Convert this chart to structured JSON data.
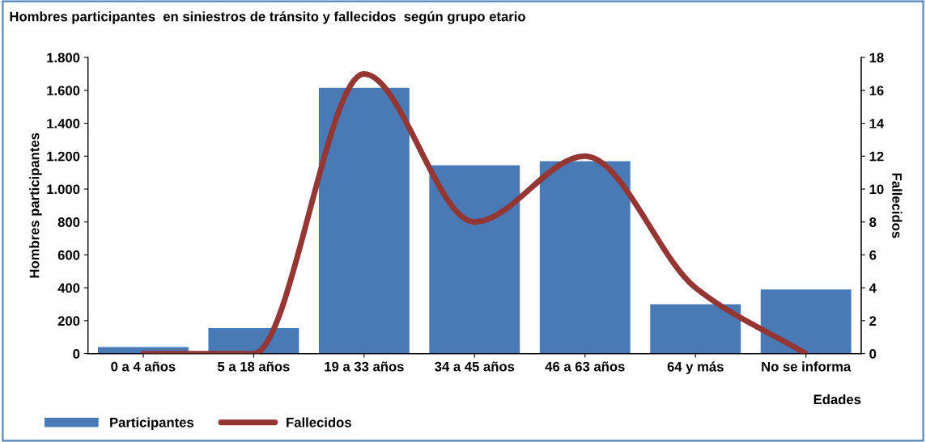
{
  "chart_data": {
    "type": "bar",
    "title": "Hombres participantes  en siniestros de tránsito y fallecidos  según grupo etario",
    "xlabel": "Edades",
    "ylabel": "Hombres participantes",
    "y2label": "Fallecidos",
    "categories": [
      "0 a 4 años",
      "5 a 18 años",
      "19 a 33 años",
      "34 a 45 años",
      "46 a 63 años",
      "64 y más",
      "No se informa"
    ],
    "series": [
      {
        "name": "Participantes",
        "color": "#4a7ab5",
        "values": [
          40,
          155,
          1615,
          1145,
          1170,
          300,
          390
        ]
      },
      {
        "name": "Fallecidos",
        "type": "line",
        "axis": "y2",
        "color": "#943634",
        "values": [
          0,
          0,
          17,
          8,
          12,
          4,
          0
        ]
      }
    ],
    "ylim": [
      0,
      1800
    ],
    "yticks": [
      0,
      200,
      400,
      600,
      800,
      {
        "value": 1000,
        "label": "1.000"
      },
      {
        "value": 1200,
        "label": "1.200"
      },
      {
        "value": 1400,
        "label": "1.400"
      },
      {
        "value": 1600,
        "label": "1.600"
      },
      {
        "value": 1800,
        "label": "1.800"
      }
    ],
    "y2lim": [
      0,
      18
    ],
    "y2ticks": [
      0,
      2,
      4,
      6,
      8,
      10,
      12,
      14,
      16,
      18
    ],
    "grid": false,
    "legend": "bottom left",
    "line_style": "solid",
    "marker": "none"
  }
}
